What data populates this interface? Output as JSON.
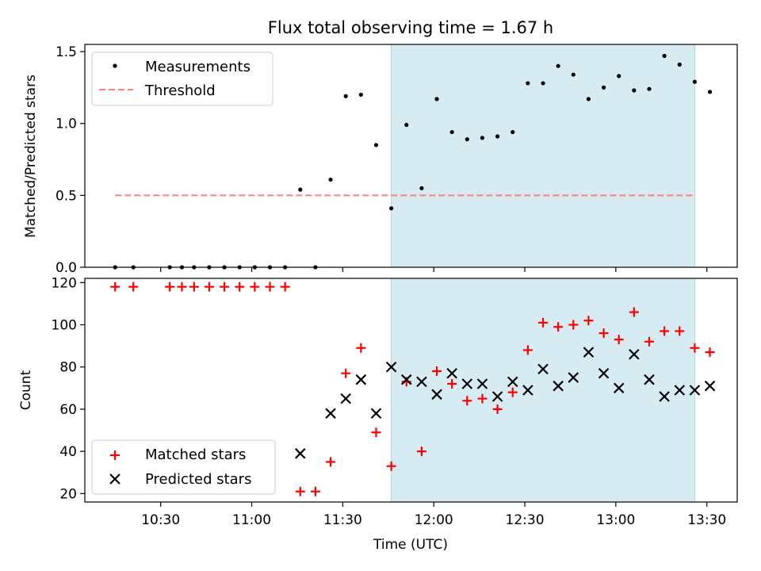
{
  "title": "Flux total observing time = 1.67 h",
  "colors": {
    "measurement": "#000000",
    "threshold": "#ff7f7f",
    "highlight": "#add8e6",
    "matched": "#ff0000",
    "predicted": "#000000"
  },
  "chart_data": [
    {
      "type": "scatter",
      "ylabel": "Matched/Predicted stars",
      "ylim": [
        0,
        1.55
      ],
      "yticks": [
        0.0,
        0.5,
        1.0,
        1.5
      ],
      "ytick_labels": [
        "0.0",
        "0.5",
        "1.0",
        "1.5"
      ],
      "xlim": [
        "10:05",
        "13:40"
      ],
      "highlight_span": [
        "11:46",
        "13:26"
      ],
      "legend_position": "upper-left",
      "legend": [
        {
          "label": "Measurements",
          "marker": "dot"
        },
        {
          "label": "Threshold",
          "marker": "dashed-line"
        }
      ],
      "threshold": {
        "value": 0.5,
        "x_from": "10:15",
        "x_to": "13:26"
      },
      "series": [
        {
          "name": "Measurements",
          "points": [
            [
              "10:15",
              0.0
            ],
            [
              "10:21",
              0.0
            ],
            [
              "10:33",
              0.0
            ],
            [
              "10:37",
              0.0
            ],
            [
              "10:41",
              0.0
            ],
            [
              "10:46",
              0.0
            ],
            [
              "10:51",
              0.0
            ],
            [
              "10:56",
              0.0
            ],
            [
              "11:01",
              0.0
            ],
            [
              "11:06",
              0.0
            ],
            [
              "11:11",
              0.0
            ],
            [
              "11:16",
              0.54
            ],
            [
              "11:21",
              0.0
            ],
            [
              "11:26",
              0.61
            ],
            [
              "11:31",
              1.19
            ],
            [
              "11:36",
              1.2
            ],
            [
              "11:41",
              0.85
            ],
            [
              "11:46",
              0.41
            ],
            [
              "11:51",
              0.99
            ],
            [
              "11:56",
              0.55
            ],
            [
              "12:01",
              1.17
            ],
            [
              "12:06",
              0.94
            ],
            [
              "12:11",
              0.89
            ],
            [
              "12:16",
              0.9
            ],
            [
              "12:21",
              0.91
            ],
            [
              "12:26",
              0.94
            ],
            [
              "12:31",
              1.28
            ],
            [
              "12:36",
              1.28
            ],
            [
              "12:41",
              1.4
            ],
            [
              "12:46",
              1.34
            ],
            [
              "12:51",
              1.17
            ],
            [
              "12:56",
              1.25
            ],
            [
              "13:01",
              1.33
            ],
            [
              "13:06",
              1.23
            ],
            [
              "13:11",
              1.24
            ],
            [
              "13:16",
              1.47
            ],
            [
              "13:21",
              1.41
            ],
            [
              "13:26",
              1.29
            ],
            [
              "13:31",
              1.22
            ]
          ]
        }
      ]
    },
    {
      "type": "scatter",
      "ylabel": "Count",
      "xlabel": "Time (UTC)",
      "ylim": [
        16,
        122
      ],
      "yticks": [
        20,
        40,
        60,
        80,
        100,
        120
      ],
      "ytick_labels": [
        "20",
        "40",
        "60",
        "80",
        "100",
        "120"
      ],
      "xlim": [
        "10:05",
        "13:40"
      ],
      "xticks": [
        "10:30",
        "11:00",
        "11:30",
        "12:00",
        "12:30",
        "13:00",
        "13:30"
      ],
      "xtick_labels": [
        "10:30",
        "11:00",
        "11:30",
        "12:00",
        "12:30",
        "13:00",
        "13:30"
      ],
      "highlight_span": [
        "11:46",
        "13:26"
      ],
      "legend_position": "lower-left",
      "legend": [
        {
          "label": "Matched stars",
          "marker": "plus"
        },
        {
          "label": "Predicted stars",
          "marker": "x"
        }
      ],
      "series": [
        {
          "name": "Matched stars",
          "marker": "plus",
          "points": [
            [
              "10:15",
              118
            ],
            [
              "10:21",
              118
            ],
            [
              "10:33",
              118
            ],
            [
              "10:37",
              118
            ],
            [
              "10:41",
              118
            ],
            [
              "10:46",
              118
            ],
            [
              "10:51",
              118
            ],
            [
              "10:56",
              118
            ],
            [
              "11:01",
              118
            ],
            [
              "11:06",
              118
            ],
            [
              "11:11",
              118
            ],
            [
              "11:16",
              21
            ],
            [
              "11:21",
              21
            ],
            [
              "11:26",
              35
            ],
            [
              "11:31",
              77
            ],
            [
              "11:36",
              89
            ],
            [
              "11:41",
              49
            ],
            [
              "11:46",
              33
            ],
            [
              "11:51",
              73
            ],
            [
              "11:56",
              40
            ],
            [
              "12:01",
              78
            ],
            [
              "12:06",
              72
            ],
            [
              "12:11",
              64
            ],
            [
              "12:16",
              65
            ],
            [
              "12:21",
              60
            ],
            [
              "12:26",
              68
            ],
            [
              "12:31",
              88
            ],
            [
              "12:36",
              101
            ],
            [
              "12:41",
              99
            ],
            [
              "12:46",
              100
            ],
            [
              "12:51",
              102
            ],
            [
              "12:56",
              96
            ],
            [
              "13:01",
              93
            ],
            [
              "13:06",
              106
            ],
            [
              "13:11",
              92
            ],
            [
              "13:16",
              97
            ],
            [
              "13:21",
              97
            ],
            [
              "13:26",
              89
            ],
            [
              "13:31",
              87
            ]
          ]
        },
        {
          "name": "Predicted stars",
          "marker": "x",
          "points": [
            [
              "11:16",
              39
            ],
            [
              "11:26",
              58
            ],
            [
              "11:31",
              65
            ],
            [
              "11:36",
              74
            ],
            [
              "11:41",
              58
            ],
            [
              "11:46",
              80
            ],
            [
              "11:51",
              74
            ],
            [
              "11:56",
              73
            ],
            [
              "12:01",
              67
            ],
            [
              "12:06",
              77
            ],
            [
              "12:11",
              72
            ],
            [
              "12:16",
              72
            ],
            [
              "12:21",
              66
            ],
            [
              "12:26",
              73
            ],
            [
              "12:31",
              69
            ],
            [
              "12:36",
              79
            ],
            [
              "12:41",
              71
            ],
            [
              "12:46",
              75
            ],
            [
              "12:51",
              87
            ],
            [
              "12:56",
              77
            ],
            [
              "13:01",
              70
            ],
            [
              "13:06",
              86
            ],
            [
              "13:11",
              74
            ],
            [
              "13:16",
              66
            ],
            [
              "13:21",
              69
            ],
            [
              "13:26",
              69
            ],
            [
              "13:31",
              71
            ]
          ]
        }
      ]
    }
  ]
}
